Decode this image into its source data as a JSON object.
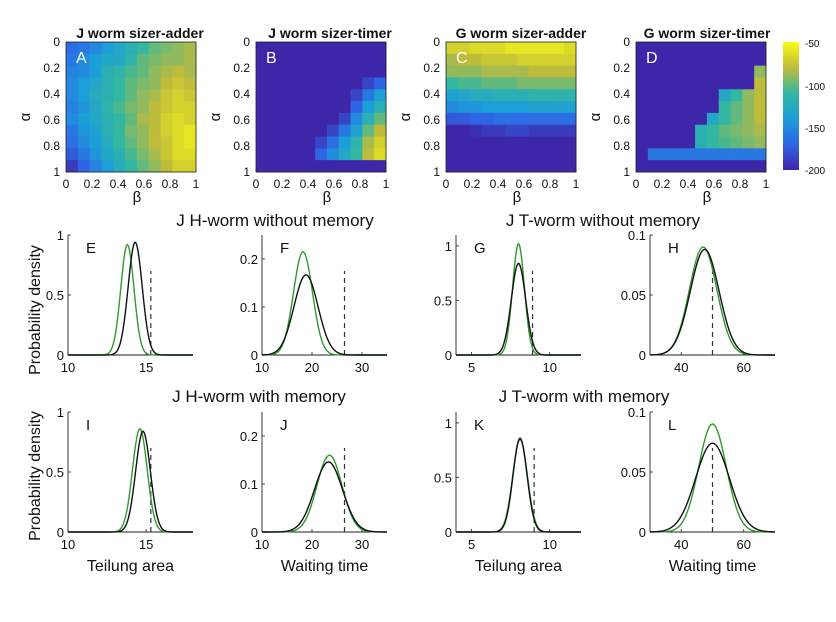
{
  "figure": {
    "heatmap_xticks": [
      "0",
      "0.2",
      "0.4",
      "0.6",
      "0.8",
      "1"
    ],
    "heatmap_yticks": [
      "0",
      "0.2",
      "0.4",
      "0.6",
      "0.8",
      "1"
    ],
    "heatmap_xlabel": "β",
    "heatmap_ylabel": "α",
    "row_titles": [
      "J H-worm without memory",
      "J T-worm without memory",
      "J H-worm with memory",
      "J T-worm with memory"
    ],
    "ylabel_density": "Probability density"
  },
  "colorbar": {
    "ticks": [
      "-50",
      "-100",
      "-150",
      "-200"
    ],
    "min": -200,
    "max": -50
  },
  "colors": {
    "green": "#2f9a2f",
    "black": "#111111",
    "dashed": "#333333"
  },
  "chart_data": [
    {
      "type": "heatmap",
      "letter": "A",
      "title": "J worm sizer-adder",
      "x": [
        0,
        0.1,
        0.2,
        0.3,
        0.4,
        0.5,
        0.6,
        0.7,
        0.8,
        0.9,
        1.0
      ],
      "y": [
        0,
        0.1,
        0.2,
        0.3,
        0.4,
        0.5,
        0.6,
        0.7,
        0.8,
        0.9,
        1.0
      ],
      "xlabel": "β",
      "ylabel": "α",
      "values": [
        [
          -165,
          -160,
          -150,
          -140,
          -130,
          -120,
          -110,
          -100,
          -95,
          -90,
          -85
        ],
        [
          -160,
          -150,
          -140,
          -130,
          -130,
          -115,
          -100,
          -95,
          -90,
          -90,
          -85
        ],
        [
          -155,
          -150,
          -140,
          -120,
          -115,
          -105,
          -100,
          -90,
          -85,
          -80,
          -85
        ],
        [
          -150,
          -140,
          -130,
          -120,
          -110,
          -100,
          -95,
          -90,
          -80,
          -75,
          -80
        ],
        [
          -150,
          -140,
          -125,
          -120,
          -110,
          -100,
          -90,
          -85,
          -75,
          -70,
          -75
        ],
        [
          -155,
          -145,
          -130,
          -115,
          -105,
          -95,
          -90,
          -80,
          -75,
          -70,
          -70
        ],
        [
          -150,
          -140,
          -130,
          -120,
          -110,
          -100,
          -85,
          -80,
          -70,
          -65,
          -70
        ],
        [
          -160,
          -145,
          -135,
          -120,
          -110,
          -95,
          -90,
          -80,
          -70,
          -65,
          -60
        ],
        [
          -165,
          -150,
          -140,
          -125,
          -110,
          -100,
          -90,
          -80,
          -75,
          -65,
          -60
        ],
        [
          -175,
          -160,
          -145,
          -130,
          -120,
          -105,
          -95,
          -85,
          -75,
          -65,
          -65
        ],
        [
          -190,
          -170,
          -155,
          -140,
          -125,
          -110,
          -100,
          -90,
          -80,
          -70,
          -70
        ]
      ]
    },
    {
      "type": "heatmap",
      "letter": "B",
      "title": "J worm sizer-timer",
      "x": [
        0,
        0.1,
        0.2,
        0.3,
        0.4,
        0.5,
        0.6,
        0.7,
        0.8,
        0.9,
        1.0
      ],
      "y": [
        0,
        0.1,
        0.2,
        0.3,
        0.4,
        0.5,
        0.6,
        0.7,
        0.8,
        0.9,
        1.0
      ],
      "xlabel": "β",
      "ylabel": "α",
      "values": [
        [
          -200,
          -200,
          -200,
          -200,
          -200,
          -200,
          -200,
          -200,
          -200,
          -200,
          -200
        ],
        [
          -200,
          -200,
          -200,
          -200,
          -200,
          -200,
          -200,
          -200,
          -200,
          -200,
          -200
        ],
        [
          -200,
          -200,
          -200,
          -200,
          -200,
          -200,
          -200,
          -200,
          -200,
          -200,
          -200
        ],
        [
          -200,
          -200,
          -200,
          -200,
          -200,
          -200,
          -200,
          -200,
          -200,
          -185,
          -170
        ],
        [
          -200,
          -200,
          -200,
          -200,
          -200,
          -200,
          -200,
          -200,
          -185,
          -160,
          -140
        ],
        [
          -200,
          -200,
          -200,
          -200,
          -200,
          -200,
          -200,
          -200,
          -170,
          -140,
          -120
        ],
        [
          -200,
          -200,
          -200,
          -200,
          -200,
          -200,
          -200,
          -185,
          -150,
          -120,
          -100
        ],
        [
          -200,
          -200,
          -200,
          -200,
          -200,
          -200,
          -185,
          -160,
          -135,
          -100,
          -80
        ],
        [
          -200,
          -200,
          -200,
          -200,
          -200,
          -185,
          -165,
          -140,
          -115,
          -85,
          -70
        ],
        [
          -200,
          -200,
          -200,
          -200,
          -200,
          -170,
          -150,
          -130,
          -110,
          -80,
          -65
        ],
        [
          -200,
          -200,
          -200,
          -200,
          -200,
          -200,
          -200,
          -200,
          -200,
          -200,
          -200
        ]
      ]
    },
    {
      "type": "heatmap",
      "letter": "C",
      "title": "G worm sizer-adder",
      "x": [
        0,
        0.1,
        0.2,
        0.3,
        0.4,
        0.5,
        0.6,
        0.7,
        0.8,
        0.9,
        1.0
      ],
      "y": [
        0,
        0.1,
        0.2,
        0.3,
        0.4,
        0.5,
        0.6,
        0.7,
        0.8,
        0.9,
        1.0
      ],
      "xlabel": "β",
      "ylabel": "α",
      "values": [
        [
          -70,
          -70,
          -65,
          -65,
          -65,
          -60,
          -60,
          -60,
          -60,
          -60,
          -65
        ],
        [
          -85,
          -80,
          -80,
          -75,
          -75,
          -75,
          -70,
          -70,
          -70,
          -70,
          -70
        ],
        [
          -90,
          -90,
          -90,
          -85,
          -85,
          -85,
          -85,
          -80,
          -80,
          -80,
          -80
        ],
        [
          -110,
          -105,
          -105,
          -100,
          -100,
          -100,
          -95,
          -95,
          -95,
          -95,
          -95
        ],
        [
          -135,
          -130,
          -125,
          -125,
          -120,
          -120,
          -120,
          -115,
          -115,
          -115,
          -115
        ],
        [
          -150,
          -145,
          -145,
          -140,
          -140,
          -140,
          -140,
          -135,
          -135,
          -135,
          -135
        ],
        [
          -175,
          -175,
          -170,
          -170,
          -165,
          -165,
          -165,
          -165,
          -165,
          -165,
          -165
        ],
        [
          -200,
          -200,
          -195,
          -190,
          -190,
          -185,
          -185,
          -190,
          -190,
          -190,
          -190
        ],
        [
          -200,
          -200,
          -200,
          -200,
          -200,
          -200,
          -200,
          -200,
          -200,
          -200,
          -200
        ],
        [
          -200,
          -200,
          -200,
          -200,
          -200,
          -200,
          -200,
          -200,
          -200,
          -200,
          -200
        ],
        [
          -200,
          -200,
          -200,
          -200,
          -200,
          -200,
          -200,
          -200,
          -200,
          -200,
          -200
        ]
      ]
    },
    {
      "type": "heatmap",
      "letter": "D",
      "title": "G worm sizer-timer",
      "x": [
        0,
        0.1,
        0.2,
        0.3,
        0.4,
        0.5,
        0.6,
        0.7,
        0.8,
        0.9,
        1.0
      ],
      "y": [
        0,
        0.1,
        0.2,
        0.3,
        0.4,
        0.5,
        0.6,
        0.7,
        0.8,
        0.9,
        1.0
      ],
      "xlabel": "β",
      "ylabel": "α",
      "values": [
        [
          -200,
          -200,
          -200,
          -200,
          -200,
          -200,
          -200,
          -200,
          -200,
          -200,
          -200
        ],
        [
          -200,
          -200,
          -200,
          -200,
          -200,
          -200,
          -200,
          -200,
          -200,
          -200,
          -200
        ],
        [
          -200,
          -200,
          -200,
          -200,
          -200,
          -200,
          -200,
          -200,
          -200,
          -200,
          -90
        ],
        [
          -200,
          -200,
          -200,
          -200,
          -200,
          -200,
          -200,
          -200,
          -200,
          -200,
          -80
        ],
        [
          -200,
          -200,
          -200,
          -200,
          -200,
          -200,
          -200,
          -130,
          -110,
          -90,
          -80
        ],
        [
          -200,
          -200,
          -200,
          -200,
          -200,
          -200,
          -200,
          -110,
          -100,
          -90,
          -80
        ],
        [
          -200,
          -200,
          -200,
          -200,
          -200,
          -200,
          -130,
          -110,
          -100,
          -90,
          -80
        ],
        [
          -200,
          -200,
          -200,
          -200,
          -200,
          -120,
          -110,
          -100,
          -95,
          -90,
          -85
        ],
        [
          -200,
          -200,
          -200,
          -200,
          -200,
          -120,
          -110,
          -105,
          -100,
          -95,
          -90
        ],
        [
          -200,
          -160,
          -160,
          -160,
          -160,
          -160,
          -160,
          -160,
          -160,
          -160,
          -160
        ],
        [
          -200,
          -200,
          -200,
          -200,
          -200,
          -200,
          -200,
          -200,
          -200,
          -200,
          -200
        ]
      ]
    },
    {
      "type": "line",
      "letter": "E",
      "xlabel": "",
      "xlim": [
        10,
        18
      ],
      "ylim": [
        0,
        1
      ],
      "xticks": [
        10,
        15
      ],
      "yticks": [
        0,
        0.5,
        1
      ],
      "ytick_labels": [
        "0",
        "0.5",
        "1"
      ],
      "dashed_x": 15.3,
      "series": [
        {
          "color": "green",
          "mean": 13.8,
          "sd": 0.42,
          "peak": 0.92
        },
        {
          "color": "black",
          "mean": 14.3,
          "sd": 0.45,
          "peak": 0.94
        }
      ]
    },
    {
      "type": "line",
      "letter": "F",
      "xlabel": "",
      "xlim": [
        10,
        35
      ],
      "ylim": [
        0,
        0.25
      ],
      "xticks": [
        10,
        20,
        30
      ],
      "yticks": [
        0,
        0.1,
        0.2
      ],
      "ytick_labels": [
        "0",
        "0.1",
        "0.2"
      ],
      "dashed_x": 26.5,
      "series": [
        {
          "color": "green",
          "mean": 18.2,
          "sd": 1.9,
          "peak": 0.215
        },
        {
          "color": "black",
          "mean": 18.8,
          "sd": 2.4,
          "peak": 0.167
        }
      ]
    },
    {
      "type": "line",
      "letter": "G",
      "xlabel": "",
      "xlim": [
        4,
        12
      ],
      "ylim": [
        0,
        1.1
      ],
      "xticks": [
        5,
        10
      ],
      "yticks": [
        0,
        0.5,
        1
      ],
      "ytick_labels": [
        "0",
        "0.5",
        "1"
      ],
      "dashed_x": 8.9,
      "series": [
        {
          "color": "green",
          "mean": 8.0,
          "sd": 0.38,
          "peak": 1.02
        },
        {
          "color": "black",
          "mean": 8.0,
          "sd": 0.46,
          "peak": 0.84
        }
      ]
    },
    {
      "type": "line",
      "letter": "H",
      "xlabel": "",
      "xlim": [
        30,
        70
      ],
      "ylim": [
        0,
        0.1
      ],
      "xticks": [
        40,
        60
      ],
      "yticks": [
        0,
        0.05,
        0.1
      ],
      "ytick_labels": [
        "0",
        "0.05",
        "0.1"
      ],
      "dashed_x": 50,
      "series": [
        {
          "color": "green",
          "mean": 47,
          "sd": 4.4,
          "peak": 0.09
        },
        {
          "color": "black",
          "mean": 47.5,
          "sd": 4.6,
          "peak": 0.088
        }
      ]
    },
    {
      "type": "line",
      "letter": "I",
      "xlabel": "Teilung area",
      "xlim": [
        10,
        18
      ],
      "ylim": [
        0,
        1
      ],
      "xticks": [
        10,
        15
      ],
      "yticks": [
        0,
        0.5,
        1
      ],
      "ytick_labels": [
        "0",
        "0.5",
        "1"
      ],
      "dashed_x": 15.3,
      "series": [
        {
          "color": "green",
          "mean": 14.6,
          "sd": 0.47,
          "peak": 0.86
        },
        {
          "color": "black",
          "mean": 14.8,
          "sd": 0.47,
          "peak": 0.84
        }
      ]
    },
    {
      "type": "line",
      "letter": "J",
      "xlabel": "Waiting time",
      "xlim": [
        10,
        35
      ],
      "ylim": [
        0,
        0.25
      ],
      "xticks": [
        10,
        20,
        30
      ],
      "yticks": [
        0,
        0.1,
        0.2
      ],
      "ytick_labels": [
        "0",
        "0.1",
        "0.2"
      ],
      "dashed_x": 26.5,
      "series": [
        {
          "color": "green",
          "mean": 23.5,
          "sd": 2.5,
          "peak": 0.16
        },
        {
          "color": "black",
          "mean": 23.3,
          "sd": 2.8,
          "peak": 0.146
        }
      ]
    },
    {
      "type": "line",
      "letter": "K",
      "xlabel": "Teilung area",
      "xlim": [
        4,
        12
      ],
      "ylim": [
        0,
        1.1
      ],
      "xticks": [
        5,
        10
      ],
      "yticks": [
        0,
        0.5,
        1
      ],
      "ytick_labels": [
        "0",
        "0.5",
        "1"
      ],
      "dashed_x": 9.0,
      "series": [
        {
          "color": "green",
          "mean": 8.1,
          "sd": 0.47,
          "peak": 0.85
        },
        {
          "color": "black",
          "mean": 8.1,
          "sd": 0.45,
          "peak": 0.86
        }
      ]
    },
    {
      "type": "line",
      "letter": "L",
      "xlabel": "Waiting time",
      "xlim": [
        30,
        70
      ],
      "ylim": [
        0,
        0.1
      ],
      "xticks": [
        40,
        60
      ],
      "yticks": [
        0,
        0.05,
        0.1
      ],
      "ytick_labels": [
        "0",
        "0.05",
        "0.1"
      ],
      "dashed_x": 50,
      "series": [
        {
          "color": "green",
          "mean": 50,
          "sd": 4.4,
          "peak": 0.09
        },
        {
          "color": "black",
          "mean": 50,
          "sd": 5.4,
          "peak": 0.074
        }
      ]
    }
  ]
}
